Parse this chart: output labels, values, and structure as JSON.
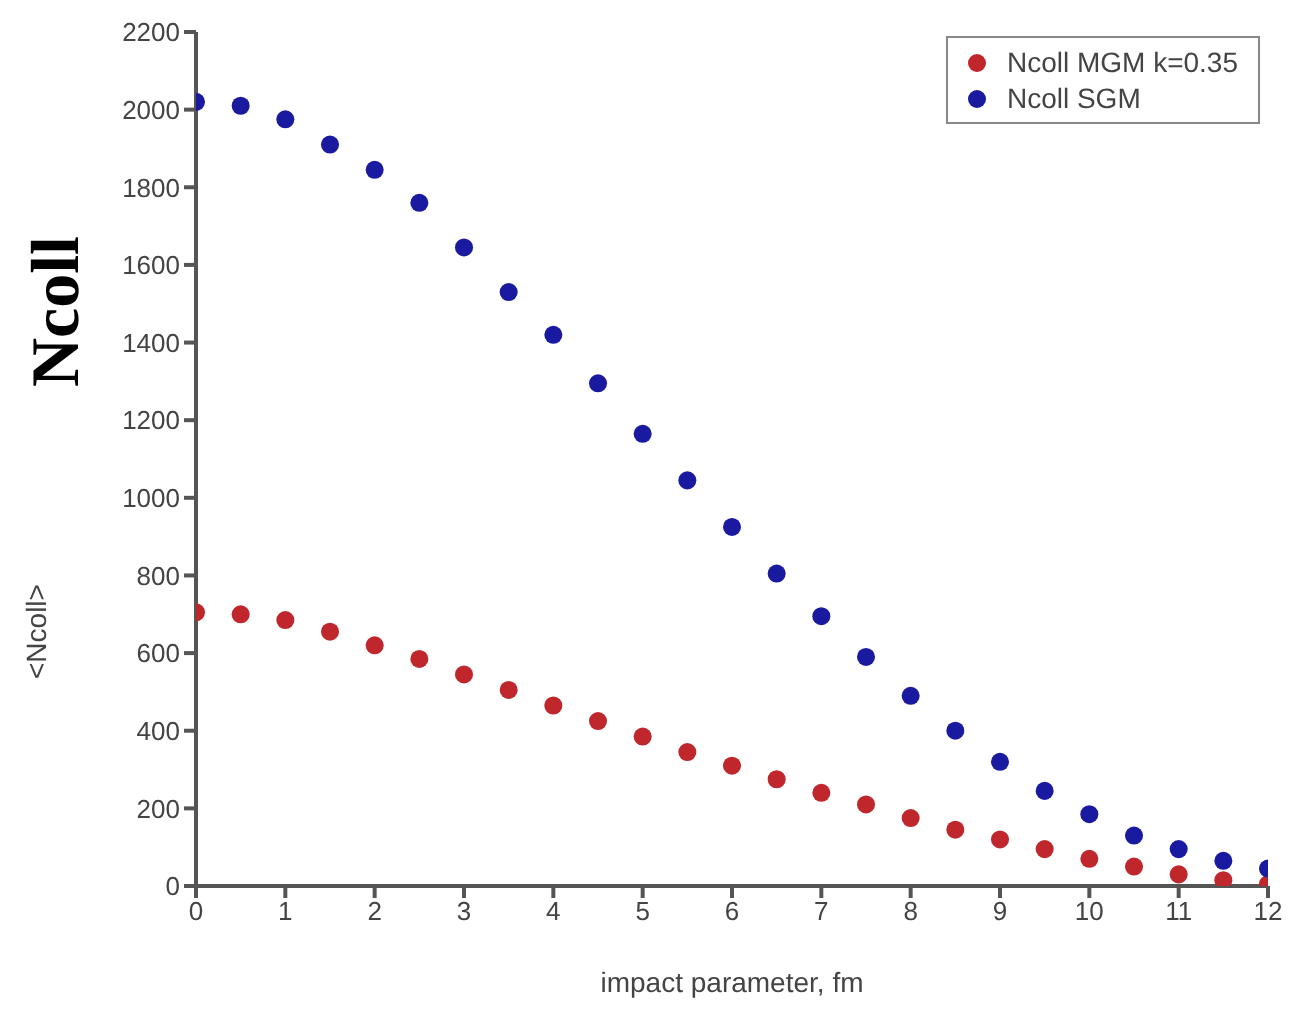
{
  "chart_data": {
    "type": "scatter",
    "xlabel": "impact parameter, fm",
    "ylabel": "<Ncoll>",
    "annotations": [
      "Ncoll"
    ],
    "x": [
      0,
      0.5,
      1,
      1.5,
      2,
      2.5,
      3,
      3.5,
      4,
      4.5,
      5,
      5.5,
      6,
      6.5,
      7,
      7.5,
      8,
      8.5,
      9,
      9.5,
      10,
      10.5,
      11,
      11.5,
      12
    ],
    "series": [
      {
        "name": "Ncoll MGM k=0.35",
        "color": "#c0272d",
        "values": [
          705,
          700,
          685,
          655,
          620,
          585,
          545,
          505,
          465,
          425,
          385,
          345,
          310,
          275,
          240,
          210,
          175,
          145,
          120,
          95,
          70,
          50,
          30,
          15,
          5
        ]
      },
      {
        "name": "Ncoll SGM",
        "color": "#1a1aa0",
        "values": [
          2020,
          2010,
          1975,
          1910,
          1845,
          1760,
          1645,
          1530,
          1420,
          1295,
          1165,
          1045,
          925,
          805,
          695,
          590,
          490,
          400,
          320,
          245,
          185,
          130,
          95,
          65,
          45
        ]
      }
    ],
    "xlim": [
      0,
      12
    ],
    "xticks": [
      0,
      1,
      2,
      3,
      4,
      5,
      6,
      7,
      8,
      9,
      10,
      11,
      12
    ],
    "ylim": [
      0,
      2200
    ],
    "yticks": [
      0,
      200,
      400,
      600,
      800,
      1000,
      1200,
      1400,
      1600,
      1800,
      2000,
      2200
    ],
    "grid": false,
    "legend": "top right",
    "marker": "circle"
  }
}
